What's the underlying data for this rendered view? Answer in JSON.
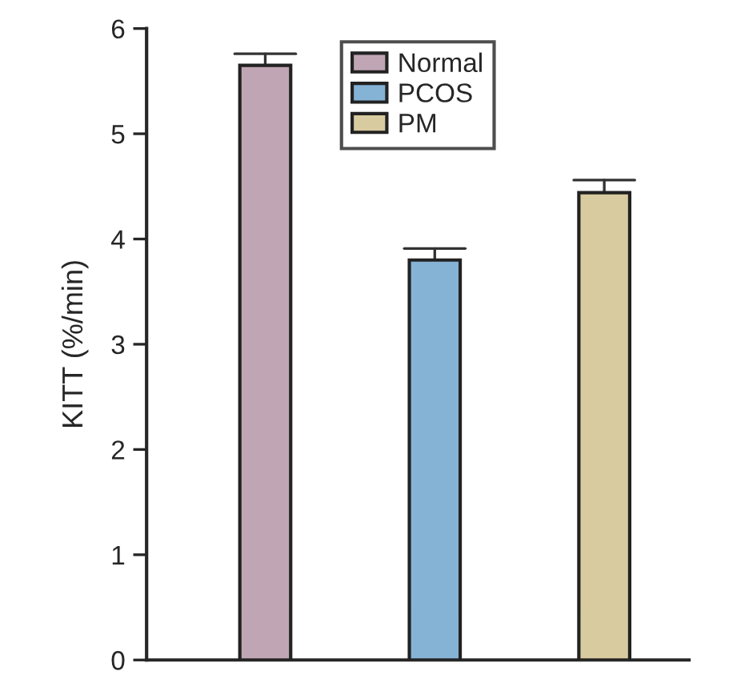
{
  "chart_data": {
    "type": "bar",
    "ylabel": "KITT (%/min)",
    "categories": [
      null,
      null,
      null
    ],
    "series": [
      {
        "name": "Normal",
        "color": "#c0a6b5",
        "values": [
          5.65,
          null,
          null
        ],
        "errors": [
          [
            5.65,
            5.76
          ],
          null,
          null
        ]
      },
      {
        "name": "PCOS",
        "color": "#85b3d5",
        "values": [
          null,
          3.8,
          null
        ],
        "errors": [
          null,
          [
            3.8,
            3.91
          ],
          null
        ]
      },
      {
        "name": "PM",
        "color": "#d9cba0",
        "values": [
          null,
          null,
          4.44
        ],
        "errors": [
          null,
          null,
          [
            4.44,
            4.56
          ]
        ]
      }
    ],
    "ylim": [
      0,
      6
    ],
    "yticks": [
      0,
      1,
      2,
      3,
      4,
      5,
      6
    ],
    "tick_labels": "y",
    "legend": "top",
    "grid": false
  }
}
